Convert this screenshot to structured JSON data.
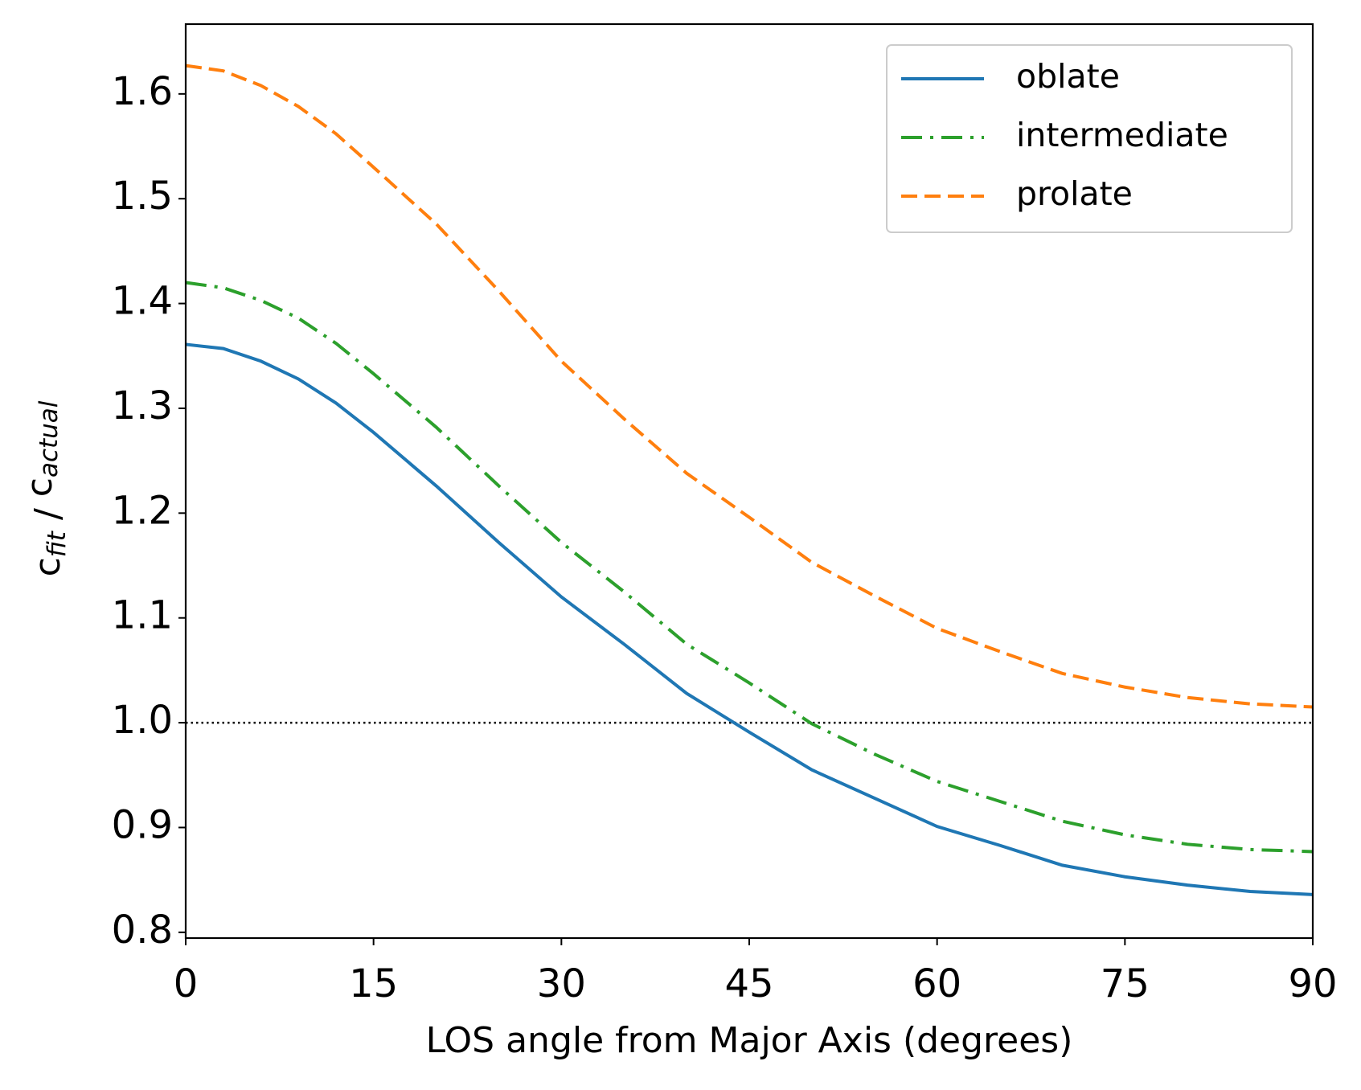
{
  "chart_data": {
    "type": "line",
    "xlabel": "LOS angle from Major Axis (degrees)",
    "ylabel": [
      "c",
      "fit",
      " / ",
      "c",
      "actual"
    ],
    "x": [
      0,
      3,
      6,
      9,
      12,
      15,
      20,
      25,
      30,
      35,
      40,
      45,
      50,
      55,
      60,
      65,
      70,
      75,
      80,
      85,
      90
    ],
    "series": [
      {
        "name": "oblate",
        "color": "#1f77b4",
        "linestyle": "solid",
        "values": [
          1.361,
          1.357,
          1.345,
          1.328,
          1.305,
          1.277,
          1.226,
          1.172,
          1.12,
          1.075,
          1.028,
          0.991,
          0.955,
          0.928,
          0.901,
          0.883,
          0.864,
          0.853,
          0.845,
          0.839,
          0.836
        ]
      },
      {
        "name": "intermediate",
        "color": "#2ca02c",
        "linestyle": "dashdot",
        "values": [
          1.42,
          1.415,
          1.403,
          1.386,
          1.362,
          1.333,
          1.282,
          1.226,
          1.172,
          1.125,
          1.075,
          1.038,
          0.999,
          0.97,
          0.944,
          0.925,
          0.906,
          0.893,
          0.884,
          0.879,
          0.877
        ]
      },
      {
        "name": "prolate",
        "color": "#ff7f0e",
        "linestyle": "dashed",
        "values": [
          1.627,
          1.622,
          1.608,
          1.588,
          1.562,
          1.53,
          1.476,
          1.412,
          1.345,
          1.29,
          1.238,
          1.196,
          1.153,
          1.121,
          1.09,
          1.068,
          1.047,
          1.034,
          1.024,
          1.018,
          1.015
        ]
      }
    ],
    "hline": 1.0,
    "xlim": [
      0,
      90
    ],
    "xticks": [
      0,
      15,
      30,
      45,
      60,
      75,
      90
    ],
    "ylim": [
      0.7945,
      1.6666
    ],
    "yticks": [
      0.8,
      0.9,
      {
        "value": 1,
        "label": "1.0"
      },
      1.1,
      1.2,
      1.3,
      1.4,
      1.5,
      1.6
    ],
    "legend": "upper right",
    "grid": false
  }
}
